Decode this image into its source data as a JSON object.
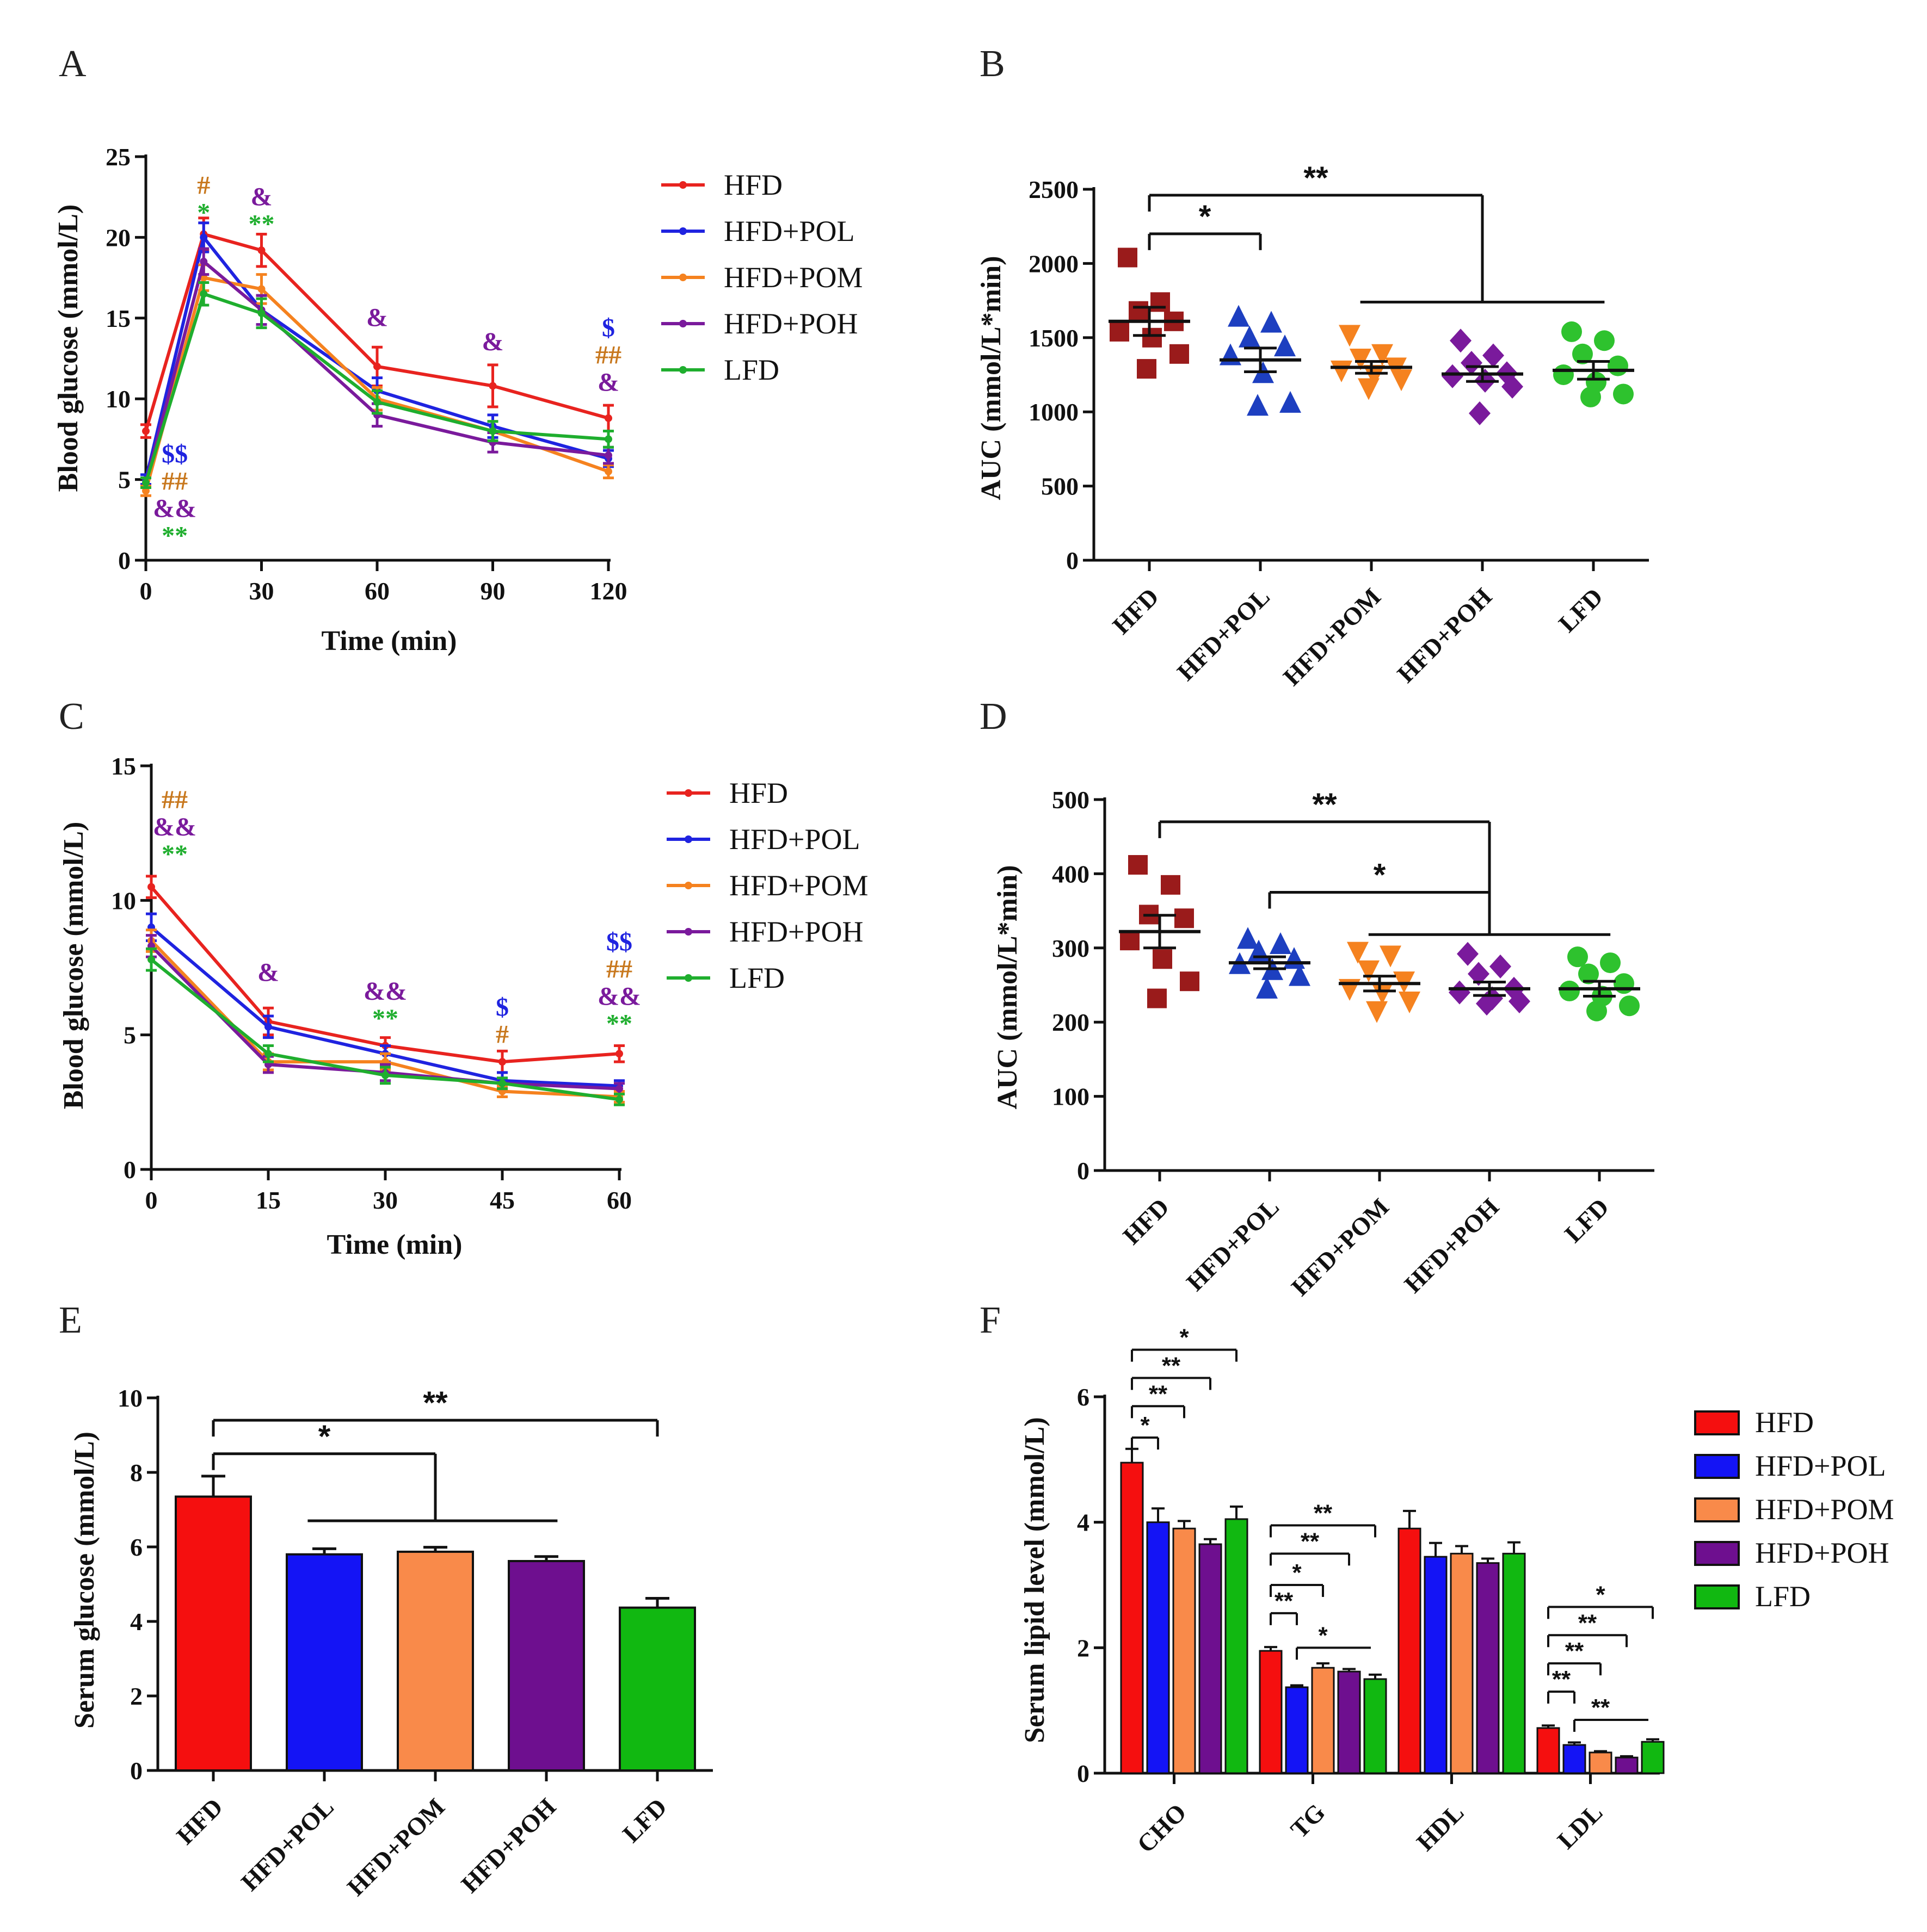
{
  "chart_data": [
    {
      "id": "A",
      "panel_label": "A",
      "type": "line",
      "xlabel": "Time (min)",
      "ylabel": "Blood glucose (mmol/L)",
      "xlim": [
        0,
        120
      ],
      "ylim": [
        0,
        25
      ],
      "xticks": [
        0,
        30,
        60,
        90,
        120
      ],
      "yticks": [
        0,
        5,
        10,
        15,
        20,
        25
      ],
      "x": [
        0,
        15,
        30,
        60,
        90,
        120
      ],
      "series": [
        {
          "name": "HFD",
          "color": "#e8231f",
          "values": [
            8.0,
            20.2,
            19.2,
            12.0,
            10.8,
            8.8
          ],
          "errors": [
            0.4,
            1.0,
            1.0,
            1.2,
            1.3,
            0.8
          ]
        },
        {
          "name": "HFD+POL",
          "color": "#1f23e0",
          "values": [
            5.0,
            20.0,
            15.5,
            10.5,
            8.3,
            6.3
          ],
          "errors": [
            0.3,
            0.9,
            0.9,
            0.8,
            0.7,
            0.5
          ]
        },
        {
          "name": "HFD+POM",
          "color": "#f5821f",
          "values": [
            4.3,
            17.5,
            16.8,
            10.0,
            8.0,
            5.5
          ],
          "errors": [
            0.3,
            0.8,
            0.9,
            0.7,
            0.6,
            0.4
          ]
        },
        {
          "name": "HFD+POH",
          "color": "#7a1a9c",
          "values": [
            4.8,
            18.5,
            15.5,
            9.0,
            7.3,
            6.5
          ],
          "errors": [
            0.3,
            0.8,
            0.9,
            0.7,
            0.6,
            0.5
          ]
        },
        {
          "name": "LFD",
          "color": "#1fae2e",
          "values": [
            4.8,
            16.5,
            15.3,
            9.8,
            8.0,
            7.5
          ],
          "errors": [
            0.3,
            0.7,
            0.9,
            0.7,
            0.6,
            0.5
          ]
        }
      ],
      "annotations": [
        {
          "x": 15,
          "lines": [
            {
              "t": "#",
              "c": "#c8781e"
            },
            {
              "t": "*",
              "c": "#1fae2e"
            }
          ],
          "at": 21.0
        },
        {
          "x": 30,
          "lines": [
            {
              "t": "&",
              "c": "#7a1a9c"
            },
            {
              "t": "**",
              "c": "#1fae2e"
            }
          ],
          "at": 20.3
        },
        {
          "x": 60,
          "lines": [
            {
              "t": "&",
              "c": "#7a1a9c"
            }
          ],
          "at": 14.5
        },
        {
          "x": 90,
          "lines": [
            {
              "t": "&",
              "c": "#7a1a9c"
            }
          ],
          "at": 13.0
        },
        {
          "x": 120,
          "lines": [
            {
              "t": "$",
              "c": "#1f23e0"
            },
            {
              "t": "##",
              "c": "#c8781e"
            },
            {
              "t": "&",
              "c": "#7a1a9c"
            }
          ],
          "at": 10.5
        },
        {
          "x": 7.5,
          "lines": [
            {
              "t": "$$",
              "c": "#1f23e0"
            },
            {
              "t": "##",
              "c": "#c8781e"
            },
            {
              "t": "&&",
              "c": "#7a1a9c"
            },
            {
              "t": "**",
              "c": "#1fae2e"
            }
          ],
          "at": 1.0
        }
      ]
    },
    {
      "id": "B",
      "panel_label": "B",
      "type": "scatter",
      "ylabel": "AUC (mmol/L*min)",
      "ylim": [
        0,
        2500
      ],
      "yticks": [
        0,
        500,
        1000,
        1500,
        2000,
        2500
      ],
      "categories": [
        "HFD",
        "HFD+POL",
        "HFD+POM",
        "HFD+POH",
        "LFD"
      ],
      "groups": [
        {
          "name": "HFD",
          "color": "#9a1b1b",
          "marker": "square",
          "points": [
            2040,
            1740,
            1680,
            1610,
            1540,
            1500,
            1390,
            1290
          ],
          "mean": 1610,
          "sem": 95
        },
        {
          "name": "HFD+POL",
          "color": "#1d3fc0",
          "marker": "triangle",
          "points": [
            1640,
            1600,
            1500,
            1440,
            1380,
            1260,
            1060,
            1040
          ],
          "mean": 1350,
          "sem": 80
        },
        {
          "name": "HFD+POM",
          "color": "#f5821f",
          "marker": "tri-down",
          "points": [
            1520,
            1390,
            1360,
            1300,
            1280,
            1250,
            1220,
            1160
          ],
          "mean": 1300,
          "sem": 40
        },
        {
          "name": "HFD+POH",
          "color": "#7a1a9c",
          "marker": "diamond",
          "points": [
            1480,
            1380,
            1330,
            1260,
            1240,
            1210,
            1170,
            990
          ],
          "mean": 1255,
          "sem": 50
        },
        {
          "name": "LFD",
          "color": "#2ec22e",
          "marker": "circle",
          "points": [
            1540,
            1480,
            1390,
            1310,
            1250,
            1200,
            1120,
            1100
          ],
          "mean": 1280,
          "sem": 60
        }
      ],
      "brackets": [
        {
          "label": "*",
          "from": 0,
          "to": 1,
          "yv": 2200
        },
        {
          "label": "**",
          "from": 0,
          "to": 3,
          "yv": 2460,
          "tail": 1740
        },
        {
          "label": "",
          "from": 1.9,
          "to": 4.1,
          "yv": 1740
        }
      ]
    },
    {
      "id": "C",
      "panel_label": "C",
      "type": "line",
      "xlabel": "Time (min)",
      "ylabel": "Blood glucose (mmol/L)",
      "xlim": [
        0,
        60
      ],
      "ylim": [
        0,
        15
      ],
      "xticks": [
        0,
        15,
        30,
        45,
        60
      ],
      "yticks": [
        0,
        5,
        10,
        15
      ],
      "x": [
        0,
        15,
        30,
        45,
        60
      ],
      "series": [
        {
          "name": "HFD",
          "color": "#e8231f",
          "values": [
            10.5,
            5.5,
            4.6,
            4.0,
            4.3
          ],
          "errors": [
            0.4,
            0.5,
            0.3,
            0.4,
            0.3
          ]
        },
        {
          "name": "HFD+POL",
          "color": "#1f23e0",
          "values": [
            9.0,
            5.3,
            4.3,
            3.3,
            3.1
          ],
          "errors": [
            0.5,
            0.4,
            0.3,
            0.3,
            0.2
          ]
        },
        {
          "name": "HFD+POM",
          "color": "#f5821f",
          "values": [
            8.5,
            4.0,
            4.0,
            2.9,
            2.7
          ],
          "errors": [
            0.4,
            0.3,
            0.3,
            0.2,
            0.2
          ]
        },
        {
          "name": "HFD+POH",
          "color": "#7a1a9c",
          "values": [
            8.3,
            3.9,
            3.6,
            3.2,
            3.0
          ],
          "errors": [
            0.4,
            0.3,
            0.3,
            0.2,
            0.2
          ]
        },
        {
          "name": "LFD",
          "color": "#1fae2e",
          "values": [
            7.8,
            4.3,
            3.5,
            3.2,
            2.6
          ],
          "errors": [
            0.4,
            0.3,
            0.3,
            0.2,
            0.2
          ]
        }
      ],
      "annotations": [
        {
          "x": 3,
          "lines": [
            {
              "t": "##",
              "c": "#c8781e"
            },
            {
              "t": "&&",
              "c": "#7a1a9c"
            },
            {
              "t": "**",
              "c": "#1fae2e"
            }
          ],
          "at": 11.4
        },
        {
          "x": 15,
          "lines": [
            {
              "t": "&",
              "c": "#7a1a9c"
            }
          ],
          "at": 7.0
        },
        {
          "x": 30,
          "lines": [
            {
              "t": "&&",
              "c": "#7a1a9c"
            },
            {
              "t": "**",
              "c": "#1fae2e"
            }
          ],
          "at": 5.3
        },
        {
          "x": 45,
          "lines": [
            {
              "t": "$",
              "c": "#1f23e0"
            },
            {
              "t": "#",
              "c": "#c8781e"
            }
          ],
          "at": 4.7
        },
        {
          "x": 60,
          "lines": [
            {
              "t": "$$",
              "c": "#1f23e0"
            },
            {
              "t": "##",
              "c": "#c8781e"
            },
            {
              "t": "&&",
              "c": "#7a1a9c"
            },
            {
              "t": "**",
              "c": "#1fae2e"
            }
          ],
          "at": 5.1
        }
      ]
    },
    {
      "id": "D",
      "panel_label": "D",
      "type": "scatter",
      "ylabel": "AUC (mmol/L*min)",
      "ylim": [
        0,
        500
      ],
      "yticks": [
        0,
        100,
        200,
        300,
        400,
        500
      ],
      "categories": [
        "HFD",
        "HFD+POL",
        "HFD+POM",
        "HFD+POH",
        "LFD"
      ],
      "groups": [
        {
          "name": "HFD",
          "color": "#9a1b1b",
          "marker": "square",
          "points": [
            412,
            385,
            345,
            340,
            310,
            285,
            255,
            232
          ],
          "mean": 322,
          "sem": 22
        },
        {
          "name": "HFD+POL",
          "color": "#1d3fc0",
          "marker": "triangle",
          "points": [
            312,
            305,
            295,
            285,
            278,
            270,
            262,
            245
          ],
          "mean": 280,
          "sem": 8
        },
        {
          "name": "HFD+POM",
          "color": "#f5821f",
          "marker": "tri-down",
          "points": [
            295,
            290,
            270,
            255,
            245,
            240,
            228,
            215
          ],
          "mean": 252,
          "sem": 10
        },
        {
          "name": "HFD+POH",
          "color": "#7a1a9c",
          "marker": "diamond",
          "points": [
            292,
            275,
            265,
            245,
            240,
            232,
            228,
            225
          ],
          "mean": 245,
          "sem": 9
        },
        {
          "name": "LFD",
          "color": "#2ec22e",
          "marker": "circle",
          "points": [
            288,
            280,
            265,
            252,
            242,
            235,
            222,
            215
          ],
          "mean": 245,
          "sem": 10
        }
      ],
      "brackets": [
        {
          "label": "**",
          "from": 0,
          "to": 3,
          "yv": 470,
          "tail": 318
        },
        {
          "label": "*",
          "from": 1,
          "to": 3,
          "yv": 375,
          "tail": 318
        },
        {
          "label": "",
          "from": 1.9,
          "to": 4.1,
          "yv": 318
        }
      ]
    },
    {
      "id": "E",
      "panel_label": "E",
      "type": "bar",
      "ylabel": "Serum glucose (mmol/L)",
      "ylim": [
        0,
        10
      ],
      "yticks": [
        0,
        2,
        4,
        6,
        8,
        10
      ],
      "categories": [
        "HFD",
        "HFD+POL",
        "HFD+POM",
        "HFD+POH",
        "LFD"
      ],
      "colors": [
        "#f50f0f",
        "#1414f5",
        "#f98a4a",
        "#6e0f8f",
        "#11b811"
      ],
      "values": [
        7.35,
        5.8,
        5.87,
        5.62,
        4.37
      ],
      "errors": [
        0.55,
        0.15,
        0.12,
        0.12,
        0.25
      ],
      "brackets": [
        {
          "label": "**",
          "from": 0,
          "to": 4,
          "yv": 9.4
        },
        {
          "label": "*",
          "from": 0,
          "to": 2,
          "yv": 8.5,
          "tail": 6.7
        },
        {
          "label": "",
          "from": 0.85,
          "to": 3.1,
          "yv": 6.7
        }
      ]
    },
    {
      "id": "F",
      "panel_label": "F",
      "type": "bar",
      "ylabel": "Serum lipid level (mmol/L)",
      "ylim": [
        0,
        6
      ],
      "yticks": [
        0,
        2,
        4,
        6
      ],
      "categories": [
        "CHO",
        "TG",
        "HDL",
        "LDL"
      ],
      "series": [
        {
          "name": "HFD",
          "color": "#f50f0f",
          "values": [
            4.95,
            1.95,
            3.9,
            0.72
          ],
          "errors": [
            0.22,
            0.06,
            0.28,
            0.04
          ]
        },
        {
          "name": "HFD+POL",
          "color": "#1414f5",
          "values": [
            4.0,
            1.37,
            3.45,
            0.45
          ],
          "errors": [
            0.22,
            0.03,
            0.22,
            0.04
          ]
        },
        {
          "name": "HFD+POM",
          "color": "#f98a4a",
          "values": [
            3.9,
            1.68,
            3.5,
            0.33
          ],
          "errors": [
            0.12,
            0.07,
            0.12,
            0.02
          ]
        },
        {
          "name": "HFD+POH",
          "color": "#6e0f8f",
          "values": [
            3.65,
            1.62,
            3.35,
            0.25
          ],
          "errors": [
            0.08,
            0.04,
            0.07,
            0.02
          ]
        },
        {
          "name": "LFD",
          "color": "#11b811",
          "values": [
            4.05,
            1.5,
            3.5,
            0.5
          ],
          "errors": [
            0.2,
            0.07,
            0.18,
            0.04
          ]
        }
      ],
      "brackets": [
        {
          "label": "*",
          "cat": 0,
          "from": 0,
          "to": 1,
          "yv": 5.35
        },
        {
          "label": "**",
          "cat": 0,
          "from": 0,
          "to": 2,
          "yv": 5.85
        },
        {
          "label": "**",
          "cat": 0,
          "from": 0,
          "to": 3,
          "yv": 6.3
        },
        {
          "label": "*",
          "cat": 0,
          "from": 0,
          "to": 4,
          "yv": 6.75
        },
        {
          "label": "**",
          "cat": 1,
          "from": 0,
          "to": 1,
          "yv": 2.55
        },
        {
          "label": "*",
          "cat": 1,
          "from": 0,
          "to": 2,
          "yv": 3.0
        },
        {
          "label": "**",
          "cat": 1,
          "from": 0,
          "to": 3,
          "yv": 3.5
        },
        {
          "label": "**",
          "cat": 1,
          "from": 0,
          "to": 4,
          "yv": 3.95
        },
        {
          "label": "*",
          "cat": 1,
          "from": 1,
          "to": 3,
          "yv": 2.0,
          "right": 1.9
        },
        {
          "label": "**",
          "cat": 3,
          "from": 0,
          "to": 1,
          "yv": 1.3
        },
        {
          "label": "**",
          "cat": 3,
          "from": 0,
          "to": 2,
          "yv": 1.75
        },
        {
          "label": "**",
          "cat": 3,
          "from": 0,
          "to": 3,
          "yv": 2.2
        },
        {
          "label": "*",
          "cat": 3,
          "from": 0,
          "to": 4,
          "yv": 2.65
        },
        {
          "label": "**",
          "cat": 3,
          "from": 1,
          "to": 3,
          "yv": 0.85,
          "right": 0.85
        }
      ]
    }
  ]
}
